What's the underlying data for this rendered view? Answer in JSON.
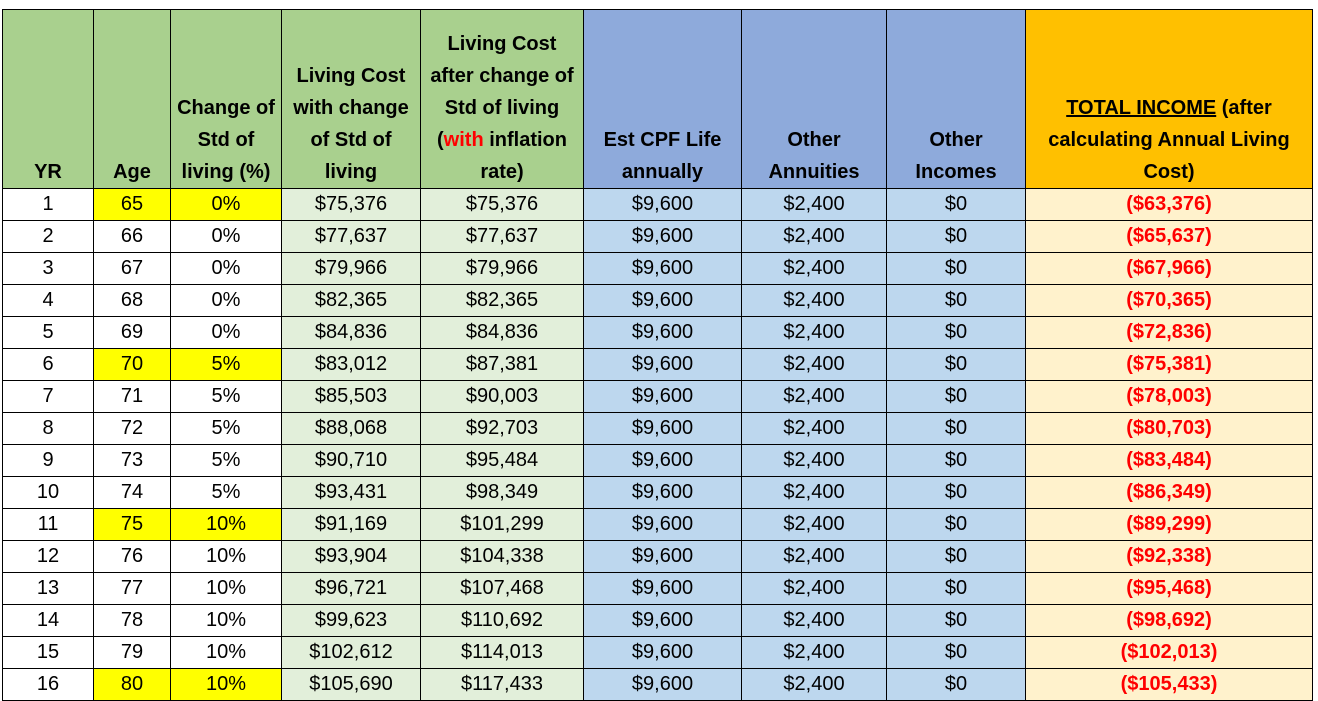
{
  "headers": {
    "yr": "YR",
    "age": "Age",
    "change": "Change of Std of living (%)",
    "living_cost": "Living Cost with change of Std of living",
    "after_pre": "Living Cost after change of Std of living (",
    "after_with": "with",
    "after_post": " inflation rate)",
    "cpf": "Est CPF Life annually",
    "annuities": "Other Annuities",
    "incomes": "Other Incomes",
    "total_ul": "TOTAL INCOME",
    "total_rest": "  (after calculating Annual Living Cost)"
  },
  "colors": {
    "header_green": "#a9d08e",
    "header_blue": "#8eaadb",
    "header_gold": "#ffc000",
    "cell_green": "#e2efda",
    "cell_blue": "#bdd7ee",
    "cell_cream": "#fff2cc",
    "highlight_yellow": "#ffff00",
    "negative_red": "#ff0000"
  },
  "rows": [
    {
      "yr": "1",
      "age": "65",
      "change": "0%",
      "living_cost": "$75,376",
      "after": "$75,376",
      "cpf": "$9,600",
      "annuities": "$2,400",
      "incomes": "$0",
      "total": "($63,376)"
    },
    {
      "yr": "2",
      "age": "66",
      "change": "0%",
      "living_cost": "$77,637",
      "after": "$77,637",
      "cpf": "$9,600",
      "annuities": "$2,400",
      "incomes": "$0",
      "total": "($65,637)"
    },
    {
      "yr": "3",
      "age": "67",
      "change": "0%",
      "living_cost": "$79,966",
      "after": "$79,966",
      "cpf": "$9,600",
      "annuities": "$2,400",
      "incomes": "$0",
      "total": "($67,966)"
    },
    {
      "yr": "4",
      "age": "68",
      "change": "0%",
      "living_cost": "$82,365",
      "after": "$82,365",
      "cpf": "$9,600",
      "annuities": "$2,400",
      "incomes": "$0",
      "total": "($70,365)"
    },
    {
      "yr": "5",
      "age": "69",
      "change": "0%",
      "living_cost": "$84,836",
      "after": "$84,836",
      "cpf": "$9,600",
      "annuities": "$2,400",
      "incomes": "$0",
      "total": "($72,836)"
    },
    {
      "yr": "6",
      "age": "70",
      "change": "5%",
      "living_cost": "$83,012",
      "after": "$87,381",
      "cpf": "$9,600",
      "annuities": "$2,400",
      "incomes": "$0",
      "total": "($75,381)"
    },
    {
      "yr": "7",
      "age": "71",
      "change": "5%",
      "living_cost": "$85,503",
      "after": "$90,003",
      "cpf": "$9,600",
      "annuities": "$2,400",
      "incomes": "$0",
      "total": "($78,003)"
    },
    {
      "yr": "8",
      "age": "72",
      "change": "5%",
      "living_cost": "$88,068",
      "after": "$92,703",
      "cpf": "$9,600",
      "annuities": "$2,400",
      "incomes": "$0",
      "total": "($80,703)"
    },
    {
      "yr": "9",
      "age": "73",
      "change": "5%",
      "living_cost": "$90,710",
      "after": "$95,484",
      "cpf": "$9,600",
      "annuities": "$2,400",
      "incomes": "$0",
      "total": "($83,484)"
    },
    {
      "yr": "10",
      "age": "74",
      "change": "5%",
      "living_cost": "$93,431",
      "after": "$98,349",
      "cpf": "$9,600",
      "annuities": "$2,400",
      "incomes": "$0",
      "total": "($86,349)"
    },
    {
      "yr": "11",
      "age": "75",
      "change": "10%",
      "living_cost": "$91,169",
      "after": "$101,299",
      "cpf": "$9,600",
      "annuities": "$2,400",
      "incomes": "$0",
      "total": "($89,299)"
    },
    {
      "yr": "12",
      "age": "76",
      "change": "10%",
      "living_cost": "$93,904",
      "after": "$104,338",
      "cpf": "$9,600",
      "annuities": "$2,400",
      "incomes": "$0",
      "total": "($92,338)"
    },
    {
      "yr": "13",
      "age": "77",
      "change": "10%",
      "living_cost": "$96,721",
      "after": "$107,468",
      "cpf": "$9,600",
      "annuities": "$2,400",
      "incomes": "$0",
      "total": "($95,468)"
    },
    {
      "yr": "14",
      "age": "78",
      "change": "10%",
      "living_cost": "$99,623",
      "after": "$110,692",
      "cpf": "$9,600",
      "annuities": "$2,400",
      "incomes": "$0",
      "total": "($98,692)"
    },
    {
      "yr": "15",
      "age": "79",
      "change": "10%",
      "living_cost": "$102,612",
      "after": "$114,013",
      "cpf": "$9,600",
      "annuities": "$2,400",
      "incomes": "$0",
      "total": "($102,013)"
    },
    {
      "yr": "16",
      "age": "80",
      "change": "10%",
      "living_cost": "$105,690",
      "after": "$117,433",
      "cpf": "$9,600",
      "annuities": "$2,400",
      "incomes": "$0",
      "total": "($105,433)"
    }
  ],
  "highlighted_rows": [
    "1",
    "6",
    "11",
    "16"
  ]
}
